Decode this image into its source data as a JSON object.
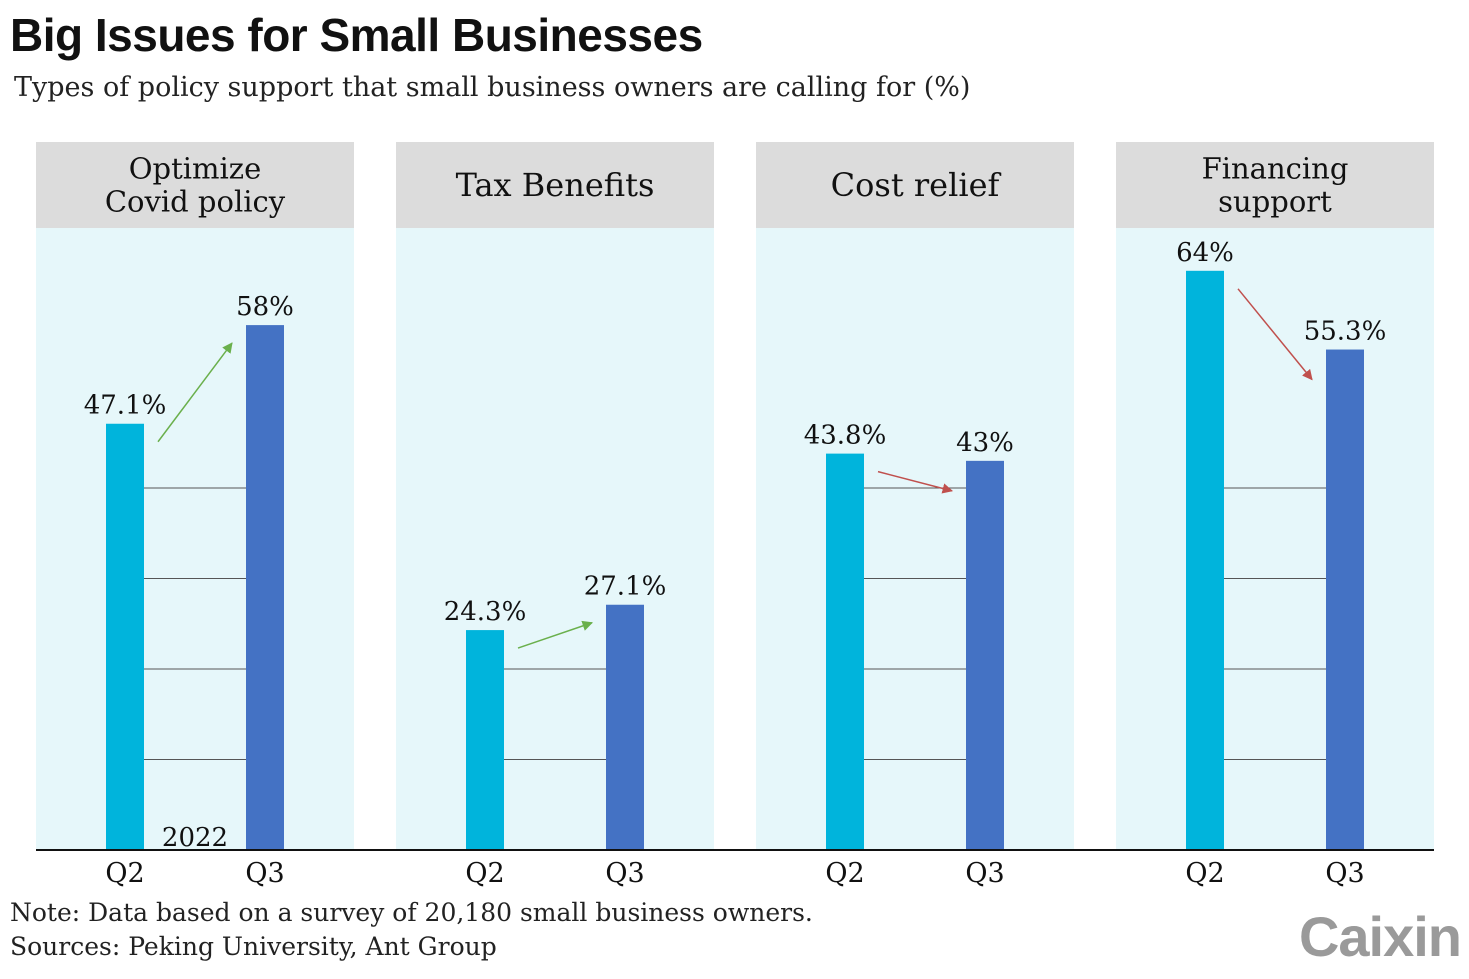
{
  "title": "Big Issues for Small Businesses",
  "subtitle": "Types of policy support that small business owners are calling for (%)",
  "note": "Note: Data based on a survey of 20,180 small business owners.",
  "sources": "Sources: Peking University, Ant Group",
  "logo": "Caixin",
  "colors": {
    "q2": "#00b4dc",
    "q3": "#4472c4",
    "panel_bg": "#e6f7fa",
    "header_bg": "#dcdcdc",
    "up_arrow": "#6ab04c",
    "down_arrow": "#c0504d"
  },
  "chart_data": {
    "type": "bar",
    "year_label": "2022",
    "categories": [
      "Q2",
      "Q3"
    ],
    "ylim": [
      0,
      70
    ],
    "grid_values": [
      10,
      20,
      30,
      40
    ],
    "panels": [
      {
        "name": "Optimize\nCovid policy",
        "values": [
          47.1,
          58
        ],
        "labels": [
          "47.1%",
          "58%"
        ],
        "trend": "up"
      },
      {
        "name": "Tax Benefits",
        "values": [
          24.3,
          27.1
        ],
        "labels": [
          "24.3%",
          "27.1%"
        ],
        "trend": "up"
      },
      {
        "name": "Cost relief",
        "values": [
          43.8,
          43
        ],
        "labels": [
          "43.8%",
          "43%"
        ],
        "trend": "down"
      },
      {
        "name": "Financing\nsupport",
        "values": [
          64,
          55.3
        ],
        "labels": [
          "64%",
          "55.3%"
        ],
        "trend": "down"
      }
    ]
  }
}
